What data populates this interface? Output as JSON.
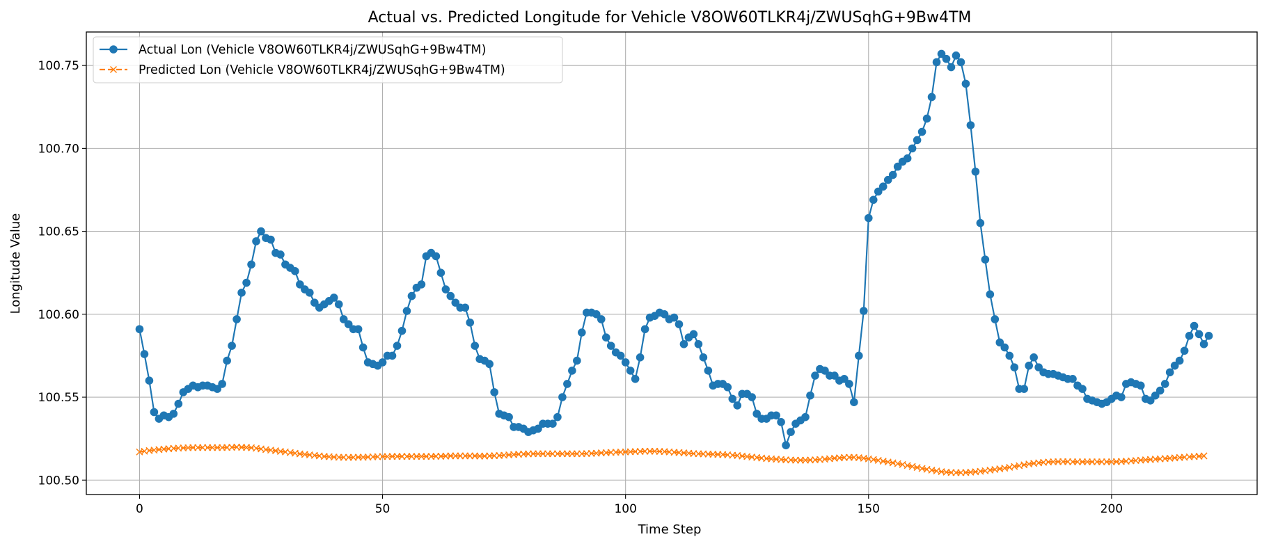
{
  "chart_data": {
    "type": "line",
    "title": "Actual vs. Predicted Longitude for Vehicle V8OW60TLKR4j/ZWUSqhG+9Bw4TM",
    "xlabel": "Time Step",
    "ylabel": "Longitude Value",
    "xlim": [
      -10.95,
      229.95
    ],
    "ylim": [
      100.4913,
      100.7702
    ],
    "xticks": [
      0,
      50,
      100,
      150,
      200
    ],
    "yticks": [
      100.5,
      100.55,
      100.6,
      100.65,
      100.7,
      100.75
    ],
    "ytick_labels": [
      "100.50",
      "100.55",
      "100.60",
      "100.65",
      "100.70",
      "100.75"
    ],
    "grid": true,
    "legend_position": "top-left",
    "series": [
      {
        "name": "Actual Lon (Vehicle V8OW60TLKR4j/ZWUSqhG+9Bw4TM)",
        "color": "#1f77b4",
        "marker": "circle",
        "linestyle": "solid",
        "values": [
          100.591,
          100.576,
          100.56,
          100.541,
          100.537,
          100.539,
          100.538,
          100.54,
          100.546,
          100.553,
          100.555,
          100.557,
          100.556,
          100.557,
          100.557,
          100.556,
          100.555,
          100.558,
          100.572,
          100.581,
          100.597,
          100.613,
          100.619,
          100.63,
          100.644,
          100.65,
          100.646,
          100.645,
          100.637,
          100.636,
          100.63,
          100.628,
          100.626,
          100.618,
          100.615,
          100.613,
          100.607,
          100.604,
          100.606,
          100.608,
          100.61,
          100.606,
          100.597,
          100.594,
          100.591,
          100.591,
          100.58,
          100.571,
          100.57,
          100.569,
          100.571,
          100.575,
          100.575,
          100.581,
          100.59,
          100.602,
          100.611,
          100.616,
          100.618,
          100.635,
          100.637,
          100.635,
          100.625,
          100.615,
          100.611,
          100.607,
          100.604,
          100.604,
          100.595,
          100.581,
          100.573,
          100.572,
          100.57,
          100.553,
          100.54,
          100.539,
          100.538,
          100.532,
          100.532,
          100.531,
          100.529,
          100.53,
          100.531,
          100.534,
          100.534,
          100.534,
          100.538,
          100.55,
          100.558,
          100.566,
          100.572,
          100.589,
          100.601,
          100.601,
          100.6,
          100.597,
          100.586,
          100.581,
          100.577,
          100.575,
          100.571,
          100.566,
          100.561,
          100.574,
          100.591,
          100.598,
          100.599,
          100.601,
          100.6,
          100.597,
          100.598,
          100.594,
          100.582,
          100.586,
          100.588,
          100.582,
          100.574,
          100.566,
          100.557,
          100.558,
          100.558,
          100.556,
          100.549,
          100.545,
          100.552,
          100.552,
          100.55,
          100.54,
          100.537,
          100.537,
          100.539,
          100.539,
          100.535,
          100.521,
          100.529,
          100.534,
          100.536,
          100.538,
          100.551,
          100.563,
          100.567,
          100.566,
          100.563,
          100.563,
          100.56,
          100.561,
          100.558,
          100.547,
          100.575,
          100.602,
          100.658,
          100.669,
          100.674,
          100.677,
          100.681,
          100.684,
          100.689,
          100.692,
          100.694,
          100.7,
          100.705,
          100.71,
          100.718,
          100.731,
          100.752,
          100.757,
          100.754,
          100.749,
          100.756,
          100.752,
          100.739,
          100.714,
          100.686,
          100.655,
          100.633,
          100.612,
          100.597,
          100.583,
          100.58,
          100.575,
          100.568,
          100.555,
          100.555,
          100.569,
          100.574,
          100.568,
          100.565,
          100.564,
          100.564,
          100.563,
          100.562,
          100.561,
          100.561,
          100.557,
          100.555,
          100.549,
          100.548,
          100.547,
          100.546,
          100.547,
          100.549,
          100.551,
          100.55,
          100.558,
          100.559,
          100.558,
          100.557,
          100.549,
          100.548,
          100.551,
          100.554,
          100.558,
          100.565,
          100.569,
          100.572,
          100.578,
          100.587,
          100.593,
          100.588,
          100.582,
          100.587
        ]
      },
      {
        "name": "Predicted Lon (Vehicle V8OW60TLKR4j/ZWUSqhG+9Bw4TM)",
        "color": "#ff7f0e",
        "marker": "x",
        "linestyle": "dashed",
        "values": [
          100.517,
          100.5174,
          100.5178,
          100.5181,
          100.5184,
          100.5187,
          100.5189,
          100.5191,
          100.5193,
          100.5194,
          100.5195,
          100.5196,
          100.5196,
          100.5196,
          100.5196,
          100.5196,
          100.5196,
          100.5196,
          100.5197,
          100.5198,
          100.5199,
          100.5198,
          100.5197,
          100.5195,
          100.5192,
          100.5188,
          100.5184,
          100.5181,
          100.5177,
          100.5173,
          100.517,
          100.5166,
          100.5162,
          100.5158,
          100.5155,
          100.5152,
          100.5149,
          100.5146,
          100.5143,
          100.5141,
          100.5139,
          100.5138,
          100.5137,
          100.5137,
          100.5137,
          100.5138,
          100.5138,
          100.5139,
          100.514,
          100.5141,
          100.5142,
          100.5142,
          100.5143,
          100.5143,
          100.5143,
          100.5143,
          100.5143,
          100.5143,
          100.5143,
          100.5143,
          100.5143,
          100.5144,
          100.5144,
          100.5145,
          100.5146,
          100.5146,
          100.5146,
          100.5146,
          100.5146,
          100.5146,
          100.5145,
          100.5145,
          100.5146,
          100.5147,
          100.5148,
          100.515,
          100.5152,
          100.5154,
          100.5156,
          100.5157,
          100.5158,
          100.5159,
          100.5159,
          100.5159,
          100.5159,
          100.5159,
          100.5159,
          100.5159,
          100.5159,
          100.5159,
          100.5159,
          100.5159,
          100.516,
          100.5161,
          100.5162,
          100.5164,
          100.5165,
          100.5167,
          100.5168,
          100.5169,
          100.517,
          100.5171,
          100.5172,
          100.5173,
          100.5174,
          100.5174,
          100.5174,
          100.5173,
          100.5172,
          100.517,
          100.5168,
          100.5166,
          100.5164,
          100.5162,
          100.516,
          100.5159,
          100.5158,
          100.5157,
          100.5156,
          100.5155,
          100.5154,
          100.5152,
          100.515,
          100.5148,
          100.5145,
          100.5142,
          100.5139,
          100.5136,
          100.5133,
          100.513,
          100.5128,
          100.5126,
          100.5124,
          100.5122,
          100.5121,
          100.512,
          100.512,
          100.512,
          100.5121,
          100.5122,
          100.5124,
          100.5126,
          100.5129,
          100.5132,
          100.5134,
          100.5136,
          100.5137,
          100.5137,
          100.5135,
          100.5132,
          100.5128,
          100.5124,
          100.5119,
          100.5114,
          100.5109,
          100.5104,
          100.5099,
          100.5094,
          100.5088,
          100.5082,
          100.5076,
          100.507,
          100.5065,
          100.506,
          100.5055,
          100.5051,
          100.5048,
          100.5046,
          100.5045,
          100.5045,
          100.5046,
          100.5048,
          100.505,
          100.5053,
          100.5056,
          100.506,
          100.5064,
          100.5068,
          100.5072,
          100.5077,
          100.5082,
          100.5087,
          100.5092,
          100.5097,
          100.5101,
          100.5104,
          100.5107,
          100.5109,
          100.511,
          100.5111,
          100.5111,
          100.5111,
          100.511,
          100.511,
          100.511,
          100.511,
          100.511,
          100.511,
          100.511,
          100.511,
          100.511,
          100.5111,
          100.5112,
          100.5114,
          100.5116,
          100.5118,
          100.512,
          100.5122,
          100.5124,
          100.5126,
          100.5128,
          100.513,
          100.5132,
          100.5134,
          100.5136,
          100.5138,
          100.514,
          100.5142,
          100.5144,
          100.5146
        ]
      }
    ]
  }
}
